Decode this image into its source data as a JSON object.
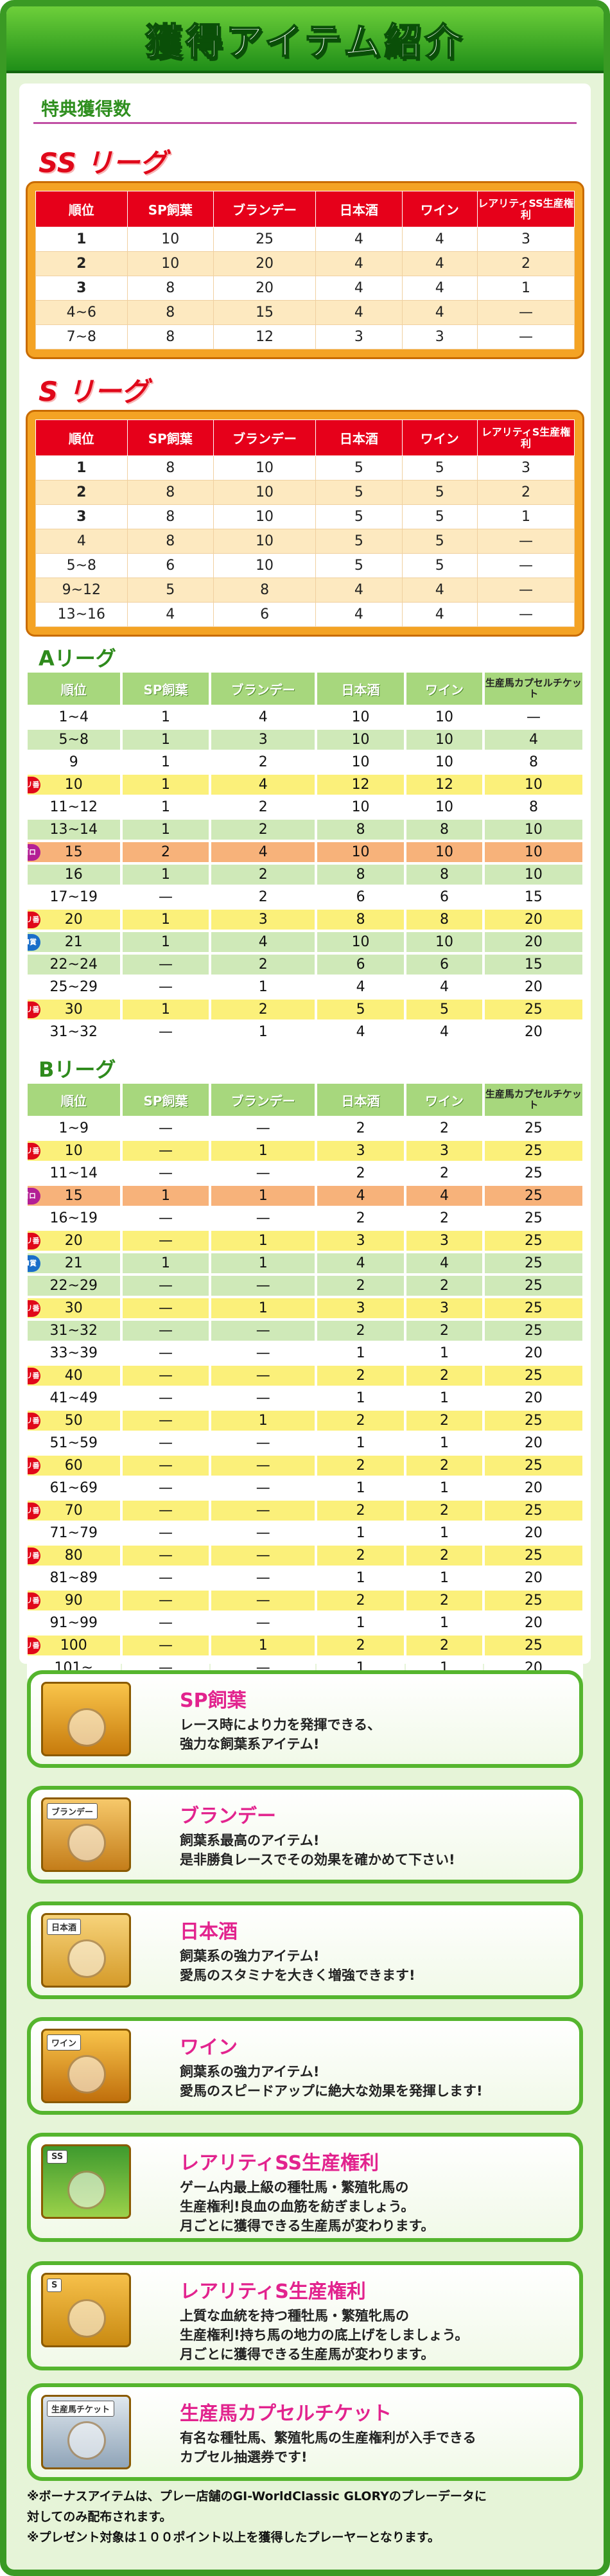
{
  "banner_title": "獲得アイテム紹介",
  "section_subtitle": "特典獲得数",
  "ss": {
    "label": "SS リーグ",
    "headers": [
      "順位",
      "SP飼葉",
      "ブランデー",
      "日本酒",
      "ワイン",
      "レアリティSS生産権利"
    ],
    "rows": [
      [
        "1",
        "10",
        "25",
        "4",
        "4",
        "3"
      ],
      [
        "2",
        "10",
        "20",
        "4",
        "4",
        "2"
      ],
      [
        "3",
        "8",
        "20",
        "4",
        "4",
        "1"
      ],
      [
        "4~6",
        "8",
        "15",
        "4",
        "4",
        "—"
      ],
      [
        "7~8",
        "8",
        "12",
        "3",
        "3",
        "—"
      ]
    ]
  },
  "s": {
    "label": "S リーグ",
    "headers": [
      "順位",
      "SP飼葉",
      "ブランデー",
      "日本酒",
      "ワイン",
      "レアリティS生産権利"
    ],
    "rows": [
      [
        "1",
        "8",
        "10",
        "5",
        "5",
        "3"
      ],
      [
        "2",
        "8",
        "10",
        "5",
        "5",
        "2"
      ],
      [
        "3",
        "8",
        "10",
        "5",
        "5",
        "1"
      ],
      [
        "4",
        "8",
        "10",
        "5",
        "5",
        "—"
      ],
      [
        "5~8",
        "6",
        "10",
        "5",
        "5",
        "—"
      ],
      [
        "9~12",
        "5",
        "8",
        "4",
        "4",
        "—"
      ],
      [
        "13~16",
        "4",
        "6",
        "4",
        "4",
        "—"
      ]
    ]
  },
  "a": {
    "label": "Aリーグ",
    "headers": [
      "順位",
      "SP飼葉",
      "ブランデー",
      "日本酒",
      "ワイン",
      "生産馬カプセルチケット"
    ],
    "rows": [
      {
        "c": [
          "1~4",
          "1",
          "4",
          "10",
          "10",
          "—"
        ],
        "bg": "#ffffff",
        "b": ""
      },
      {
        "c": [
          "5~8",
          "1",
          "3",
          "10",
          "10",
          "4"
        ],
        "bg": "#cfe9b8",
        "b": ""
      },
      {
        "c": [
          "9",
          "1",
          "2",
          "10",
          "10",
          "8"
        ],
        "bg": "#ffffff",
        "b": ""
      },
      {
        "c": [
          "10",
          "1",
          "4",
          "12",
          "12",
          "10"
        ],
        "bg": "#fbf07a",
        "b": "キリ番"
      },
      {
        "c": [
          "11~12",
          "1",
          "2",
          "10",
          "10",
          "8"
        ],
        "bg": "#ffffff",
        "b": ""
      },
      {
        "c": [
          "13~14",
          "1",
          "2",
          "8",
          "8",
          "10"
        ],
        "bg": "#cfe9b8",
        "b": ""
      },
      {
        "c": [
          "15",
          "2",
          "4",
          "10",
          "10",
          "10"
        ],
        "bg": "#f7b27a",
        "b": "ゴロ"
      },
      {
        "c": [
          "16",
          "1",
          "2",
          "8",
          "8",
          "10"
        ],
        "bg": "#cfe9b8",
        "b": ""
      },
      {
        "c": [
          "17~19",
          "—",
          "2",
          "6",
          "6",
          "15"
        ],
        "bg": "#ffffff",
        "b": ""
      },
      {
        "c": [
          "20",
          "1",
          "3",
          "8",
          "8",
          "20"
        ],
        "bg": "#fbf07a",
        "b": "キリ番"
      },
      {
        "c": [
          "21",
          "1",
          "4",
          "10",
          "10",
          "20"
        ],
        "bg": "#cfe9b8",
        "b": "GI賞"
      },
      {
        "c": [
          "22~24",
          "—",
          "2",
          "6",
          "6",
          "15"
        ],
        "bg": "#cfe9b8",
        "b": ""
      },
      {
        "c": [
          "25~29",
          "—",
          "1",
          "4",
          "4",
          "20"
        ],
        "bg": "#ffffff",
        "b": ""
      },
      {
        "c": [
          "30",
          "1",
          "2",
          "5",
          "5",
          "25"
        ],
        "bg": "#fbf07a",
        "b": "キリ番"
      },
      {
        "c": [
          "31~32",
          "—",
          "1",
          "4",
          "4",
          "20"
        ],
        "bg": "#ffffff",
        "b": ""
      }
    ]
  },
  "b": {
    "label": "Bリーグ",
    "headers": [
      "順位",
      "SP飼葉",
      "ブランデー",
      "日本酒",
      "ワイン",
      "生産馬カプセルチケット"
    ],
    "rows": [
      {
        "c": [
          "1~9",
          "—",
          "—",
          "2",
          "2",
          "25"
        ],
        "bg": "#ffffff",
        "b": ""
      },
      {
        "c": [
          "10",
          "—",
          "1",
          "3",
          "3",
          "25"
        ],
        "bg": "#fbf07a",
        "b": "キリ番"
      },
      {
        "c": [
          "11~14",
          "—",
          "—",
          "2",
          "2",
          "25"
        ],
        "bg": "#ffffff",
        "b": ""
      },
      {
        "c": [
          "15",
          "1",
          "1",
          "4",
          "4",
          "25"
        ],
        "bg": "#f7b27a",
        "b": "ゴロ"
      },
      {
        "c": [
          "16~19",
          "—",
          "—",
          "2",
          "2",
          "25"
        ],
        "bg": "#ffffff",
        "b": ""
      },
      {
        "c": [
          "20",
          "—",
          "1",
          "3",
          "3",
          "25"
        ],
        "bg": "#fbf07a",
        "b": "キリ番"
      },
      {
        "c": [
          "21",
          "1",
          "1",
          "4",
          "4",
          "25"
        ],
        "bg": "#cfe9b8",
        "b": "GI賞"
      },
      {
        "c": [
          "22~29",
          "—",
          "—",
          "2",
          "2",
          "25"
        ],
        "bg": "#cfe9b8",
        "b": ""
      },
      {
        "c": [
          "30",
          "—",
          "1",
          "3",
          "3",
          "25"
        ],
        "bg": "#fbf07a",
        "b": "キリ番"
      },
      {
        "c": [
          "31~32",
          "—",
          "—",
          "2",
          "2",
          "25"
        ],
        "bg": "#cfe9b8",
        "b": ""
      },
      {
        "c": [
          "33~39",
          "—",
          "—",
          "1",
          "1",
          "20"
        ],
        "bg": "#ffffff",
        "b": ""
      },
      {
        "c": [
          "40",
          "—",
          "—",
          "2",
          "2",
          "25"
        ],
        "bg": "#fbf07a",
        "b": "キリ番"
      },
      {
        "c": [
          "41~49",
          "—",
          "—",
          "1",
          "1",
          "20"
        ],
        "bg": "#ffffff",
        "b": ""
      },
      {
        "c": [
          "50",
          "—",
          "1",
          "2",
          "2",
          "25"
        ],
        "bg": "#fbf07a",
        "b": "キリ番"
      },
      {
        "c": [
          "51~59",
          "—",
          "—",
          "1",
          "1",
          "20"
        ],
        "bg": "#ffffff",
        "b": ""
      },
      {
        "c": [
          "60",
          "—",
          "—",
          "2",
          "2",
          "25"
        ],
        "bg": "#fbf07a",
        "b": "キリ番"
      },
      {
        "c": [
          "61~69",
          "—",
          "—",
          "1",
          "1",
          "20"
        ],
        "bg": "#ffffff",
        "b": ""
      },
      {
        "c": [
          "70",
          "—",
          "—",
          "2",
          "2",
          "25"
        ],
        "bg": "#fbf07a",
        "b": "キリ番"
      },
      {
        "c": [
          "71~79",
          "—",
          "—",
          "1",
          "1",
          "20"
        ],
        "bg": "#ffffff",
        "b": ""
      },
      {
        "c": [
          "80",
          "—",
          "—",
          "2",
          "2",
          "25"
        ],
        "bg": "#fbf07a",
        "b": "キリ番"
      },
      {
        "c": [
          "81~89",
          "—",
          "—",
          "1",
          "1",
          "20"
        ],
        "bg": "#ffffff",
        "b": ""
      },
      {
        "c": [
          "90",
          "—",
          "—",
          "2",
          "2",
          "25"
        ],
        "bg": "#fbf07a",
        "b": "キリ番"
      },
      {
        "c": [
          "91~99",
          "—",
          "—",
          "1",
          "1",
          "20"
        ],
        "bg": "#ffffff",
        "b": ""
      },
      {
        "c": [
          "100",
          "—",
          "1",
          "2",
          "2",
          "25"
        ],
        "bg": "#fbf07a",
        "b": "キリ番"
      },
      {
        "c": [
          "101~",
          "—",
          "—",
          "1",
          "1",
          "20"
        ],
        "bg": "#ffffff",
        "b": ""
      }
    ]
  },
  "items": [
    {
      "title": "SP飼葉",
      "desc1": "レース時により力を発揮できる、",
      "desc2": "強力な飼葉系アイテム!",
      "desc3": "",
      "thumb_label": "",
      "icon": "sp-feed-icon"
    },
    {
      "title": "ブランデー",
      "desc1": "飼葉系最高のアイテム!",
      "desc2": "是非勝負レースでその効果を確かめて下さい!",
      "desc3": "",
      "thumb_label": "ブランデー",
      "icon": "brandy-icon"
    },
    {
      "title": "日本酒",
      "desc1": "飼葉系の強力アイテム!",
      "desc2": "愛馬のスタミナを大きく増強できます!",
      "desc3": "",
      "thumb_label": "日本酒",
      "icon": "sake-icon"
    },
    {
      "title": "ワイン",
      "desc1": "飼葉系の強力アイテム!",
      "desc2": "愛馬のスピードアップに絶大な効果を発揮します!",
      "desc3": "",
      "thumb_label": "ワイン",
      "icon": "wine-icon"
    },
    {
      "title": "レアリティSS生産権利",
      "desc1": "ゲーム内最上級の種牡馬・繁殖牝馬の",
      "desc2": "生産権利!良血の血筋を紡ぎましょう。",
      "desc3": "月ごとに獲得できる生産馬が変わります。",
      "thumb_label": "SS",
      "icon": "ss-horse-icon"
    },
    {
      "title": "レアリティS生産権利",
      "desc1": "上質な血統を持つ種牡馬・繁殖牝馬の",
      "desc2": "生産権利!持ち馬の地力の底上げをしましょう。",
      "desc3": "月ごとに獲得できる生産馬が変わります。",
      "thumb_label": "S",
      "icon": "s-horse-icon"
    },
    {
      "title": "生産馬カプセルチケット",
      "desc1": "有名な種牡馬、繁殖牝馬の生産権利が入手できる",
      "desc2": "カプセル抽選券です!",
      "desc3": "",
      "thumb_label": "生産馬チケット",
      "icon": "capsule-ticket-icon"
    }
  ],
  "footnotes": {
    "line1": "※ボーナスアイテムは、プレー店舗のGI-WorldClassic GLORYのプレーデータに",
    "line2": "対してのみ配布されます。",
    "line3": "※プレゼント対象は１００ポイント以上を獲得したプレーヤーとなります。"
  },
  "colors": {
    "ss_header": "#e6001a",
    "green_header": "#a7d77d",
    "frame": "#3a9a24",
    "pink_title": "#e2238e"
  }
}
